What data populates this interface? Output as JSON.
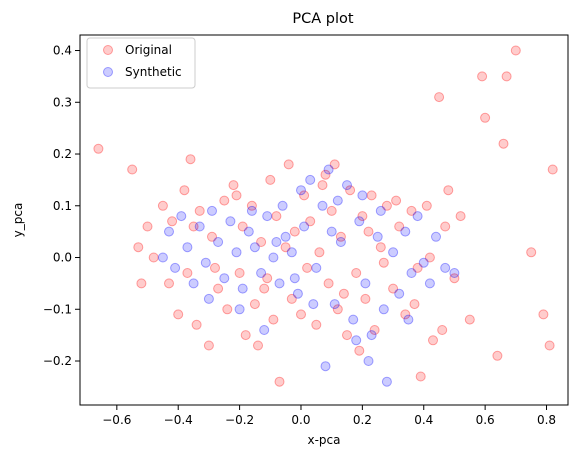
{
  "chart_data": {
    "type": "scatter",
    "title": "PCA plot",
    "xlabel": "x-pca",
    "ylabel": "y_pca",
    "xlim": [
      -0.72,
      0.87
    ],
    "ylim": [
      -0.285,
      0.43
    ],
    "xticks": [
      -0.6,
      -0.4,
      -0.2,
      0.0,
      0.2,
      0.4,
      0.6,
      0.8
    ],
    "xtick_labels": [
      "−0.6",
      "−0.4",
      "−0.2",
      "0.0",
      "0.2",
      "0.4",
      "0.6",
      "0.8"
    ],
    "yticks": [
      -0.2,
      -0.1,
      0.0,
      0.1,
      0.2,
      0.3,
      0.4
    ],
    "ytick_labels": [
      "−0.2",
      "−0.1",
      "0.0",
      "0.1",
      "0.2",
      "0.3",
      "0.4"
    ],
    "grid": false,
    "legend_position": "top-left",
    "marker_alpha": 0.2,
    "series": [
      {
        "name": "Original",
        "color": "#ff0000",
        "points": [
          [
            -0.66,
            0.21
          ],
          [
            -0.55,
            0.17
          ],
          [
            -0.53,
            0.02
          ],
          [
            -0.52,
            -0.05
          ],
          [
            -0.5,
            0.06
          ],
          [
            -0.48,
            0.0
          ],
          [
            -0.45,
            0.1
          ],
          [
            -0.43,
            -0.05
          ],
          [
            -0.42,
            0.07
          ],
          [
            -0.4,
            -0.11
          ],
          [
            -0.38,
            0.13
          ],
          [
            -0.37,
            -0.03
          ],
          [
            -0.36,
            0.19
          ],
          [
            -0.34,
            -0.13
          ],
          [
            -0.33,
            0.09
          ],
          [
            -0.3,
            -0.17
          ],
          [
            -0.29,
            0.04
          ],
          [
            -0.27,
            -0.06
          ],
          [
            -0.25,
            0.11
          ],
          [
            -0.24,
            -0.1
          ],
          [
            -0.22,
            0.14
          ],
          [
            -0.2,
            -0.03
          ],
          [
            -0.19,
            0.06
          ],
          [
            -0.18,
            -0.15
          ],
          [
            -0.16,
            0.1
          ],
          [
            -0.15,
            -0.09
          ],
          [
            -0.13,
            0.03
          ],
          [
            -0.12,
            -0.06
          ],
          [
            -0.1,
            0.15
          ],
          [
            -0.09,
            -0.12
          ],
          [
            -0.08,
            0.08
          ],
          [
            -0.07,
            -0.24
          ],
          [
            -0.05,
            0.02
          ],
          [
            -0.04,
            0.18
          ],
          [
            -0.03,
            -0.08
          ],
          [
            -0.02,
            0.05
          ],
          [
            0.0,
            -0.11
          ],
          [
            0.01,
            0.12
          ],
          [
            0.02,
            -0.02
          ],
          [
            0.03,
            0.07
          ],
          [
            0.05,
            -0.13
          ],
          [
            0.06,
            0.01
          ],
          [
            0.08,
            0.16
          ],
          [
            0.09,
            -0.05
          ],
          [
            0.1,
            0.09
          ],
          [
            0.12,
            -0.1
          ],
          [
            0.13,
            0.04
          ],
          [
            0.15,
            -0.15
          ],
          [
            0.16,
            0.13
          ],
          [
            0.18,
            -0.03
          ],
          [
            0.2,
            0.08
          ],
          [
            0.21,
            -0.08
          ],
          [
            0.23,
            0.12
          ],
          [
            0.24,
            -0.14
          ],
          [
            0.26,
            0.02
          ],
          [
            0.28,
            0.1
          ],
          [
            0.3,
            -0.06
          ],
          [
            0.32,
            0.06
          ],
          [
            0.34,
            -0.11
          ],
          [
            0.36,
            0.09
          ],
          [
            0.38,
            -0.02
          ],
          [
            0.39,
            -0.23
          ],
          [
            0.41,
            0.1
          ],
          [
            0.43,
            -0.16
          ],
          [
            0.45,
            0.31
          ],
          [
            0.46,
            -0.14
          ],
          [
            0.48,
            0.13
          ],
          [
            0.5,
            -0.04
          ],
          [
            0.52,
            0.08
          ],
          [
            0.55,
            -0.12
          ],
          [
            0.59,
            0.35
          ],
          [
            0.6,
            0.27
          ],
          [
            0.64,
            -0.19
          ],
          [
            0.66,
            0.22
          ],
          [
            0.67,
            0.35
          ],
          [
            0.7,
            0.4
          ],
          [
            0.75,
            0.01
          ],
          [
            0.79,
            -0.11
          ],
          [
            0.81,
            -0.17
          ],
          [
            0.82,
            0.17
          ],
          [
            -0.35,
            0.06
          ],
          [
            -0.28,
            -0.02
          ],
          [
            -0.21,
            0.12
          ],
          [
            -0.11,
            -0.04
          ],
          [
            0.07,
            0.14
          ],
          [
            0.14,
            -0.07
          ],
          [
            0.22,
            0.05
          ],
          [
            0.27,
            -0.01
          ],
          [
            0.31,
            0.11
          ],
          [
            0.37,
            -0.09
          ],
          [
            0.42,
            0.0
          ],
          [
            0.47,
            0.06
          ],
          [
            0.19,
            -0.18
          ],
          [
            -0.14,
            -0.17
          ],
          [
            0.11,
            0.18
          ]
        ]
      },
      {
        "name": "Synthetic",
        "color": "#0000ff",
        "points": [
          [
            -0.45,
            0.0
          ],
          [
            -0.43,
            0.05
          ],
          [
            -0.41,
            -0.02
          ],
          [
            -0.39,
            0.08
          ],
          [
            -0.37,
            0.02
          ],
          [
            -0.35,
            -0.05
          ],
          [
            -0.33,
            0.06
          ],
          [
            -0.31,
            -0.01
          ],
          [
            -0.29,
            0.09
          ],
          [
            -0.27,
            0.03
          ],
          [
            -0.25,
            -0.04
          ],
          [
            -0.23,
            0.07
          ],
          [
            -0.21,
            0.01
          ],
          [
            -0.19,
            -0.06
          ],
          [
            -0.17,
            0.05
          ],
          [
            -0.15,
            0.02
          ],
          [
            -0.13,
            -0.03
          ],
          [
            -0.11,
            0.08
          ],
          [
            -0.09,
            0.0
          ],
          [
            -0.07,
            -0.05
          ],
          [
            -0.05,
            0.04
          ],
          [
            -0.03,
            0.01
          ],
          [
            -0.01,
            -0.07
          ],
          [
            0.01,
            0.06
          ],
          [
            0.03,
            0.15
          ],
          [
            0.05,
            -0.02
          ],
          [
            0.07,
            0.1
          ],
          [
            0.09,
            0.17
          ],
          [
            0.11,
            -0.09
          ],
          [
            0.13,
            0.03
          ],
          [
            0.15,
            0.14
          ],
          [
            0.17,
            -0.12
          ],
          [
            0.19,
            0.07
          ],
          [
            0.21,
            -0.05
          ],
          [
            0.23,
            -0.15
          ],
          [
            0.25,
            0.04
          ],
          [
            0.27,
            -0.1
          ],
          [
            0.28,
            -0.24
          ],
          [
            0.3,
            0.01
          ],
          [
            0.32,
            -0.07
          ],
          [
            0.34,
            0.05
          ],
          [
            0.36,
            -0.03
          ],
          [
            0.38,
            0.08
          ],
          [
            0.4,
            -0.01
          ],
          [
            0.42,
            -0.05
          ],
          [
            0.44,
            0.04
          ],
          [
            0.47,
            -0.02
          ],
          [
            0.5,
            -0.03
          ],
          [
            0.22,
            -0.2
          ],
          [
            0.08,
            -0.21
          ],
          [
            -0.12,
            -0.14
          ],
          [
            0.0,
            0.13
          ],
          [
            -0.06,
            0.1
          ],
          [
            0.12,
            0.11
          ],
          [
            -0.2,
            -0.1
          ],
          [
            0.26,
            0.09
          ],
          [
            -0.3,
            -0.08
          ],
          [
            0.18,
            -0.16
          ],
          [
            0.35,
            -0.12
          ],
          [
            -0.02,
            -0.04
          ],
          [
            -0.08,
            0.03
          ],
          [
            0.04,
            -0.09
          ],
          [
            0.1,
            0.05
          ],
          [
            -0.16,
            0.09
          ],
          [
            0.2,
            0.12
          ]
        ]
      }
    ]
  }
}
